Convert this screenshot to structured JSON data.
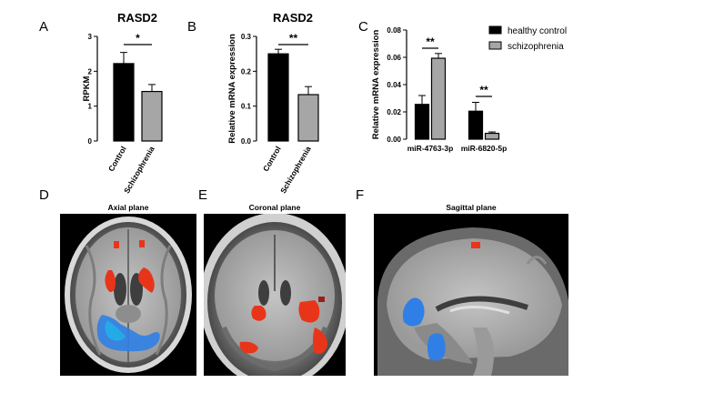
{
  "panel_labels": {
    "a": "A",
    "b": "B",
    "c": "C",
    "d": "D",
    "e": "E",
    "f": "F"
  },
  "colors": {
    "control": "#000000",
    "schizophrenia": "#a6a6a6",
    "activation_red": "#e8351a",
    "activation_blue": "#2f7fe6"
  },
  "chart_data": [
    {
      "type": "bar",
      "panel": "A",
      "title": "RASD2",
      "ylabel": "RPKM",
      "xlabel": "",
      "ylim": [
        0,
        3
      ],
      "yticks": [
        "0",
        "1",
        "2",
        "3"
      ],
      "categories": [
        "Control",
        "Schizophrenia"
      ],
      "values": [
        2.22,
        1.42
      ],
      "errors": [
        0.32,
        0.2
      ],
      "significance": [
        {
          "between": [
            0,
            1
          ],
          "label": "*"
        }
      ]
    },
    {
      "type": "bar",
      "panel": "B",
      "title": "RASD2",
      "ylabel": "Relative mRNA expression",
      "xlabel": "",
      "ylim": [
        0,
        0.3
      ],
      "yticks": [
        "0.0",
        "0.1",
        "0.2",
        "0.3"
      ],
      "categories": [
        "Control",
        "Schizophrenia"
      ],
      "values": [
        0.25,
        0.133
      ],
      "errors": [
        0.013,
        0.023
      ],
      "significance": [
        {
          "between": [
            0,
            1
          ],
          "label": "**"
        }
      ]
    },
    {
      "type": "bar",
      "panel": "C",
      "title": "",
      "ylabel": "Relative mRNA expression",
      "xlabel": "",
      "ylim": [
        0,
        0.08
      ],
      "yticks": [
        "0.00",
        "0.02",
        "0.04",
        "0.06",
        "0.08"
      ],
      "categories": [
        "miR-4763-3p",
        "miR-6820-5p"
      ],
      "series": [
        {
          "name": "healthy control",
          "values": [
            0.0255,
            0.0205
          ],
          "errors": [
            0.0065,
            0.0065
          ]
        },
        {
          "name": "schizophrenia",
          "values": [
            0.0593,
            0.0043
          ],
          "errors": [
            0.0035,
            0.001
          ]
        }
      ],
      "legend_position": "top-right",
      "significance": [
        {
          "category": 0,
          "label": "**"
        },
        {
          "category": 1,
          "label": "**"
        }
      ]
    }
  ],
  "brain_panels": [
    {
      "panel": "D",
      "title": "Axial plane"
    },
    {
      "panel": "E",
      "title": "Coronal plane"
    },
    {
      "panel": "F",
      "title": "Sagittal plane"
    }
  ]
}
